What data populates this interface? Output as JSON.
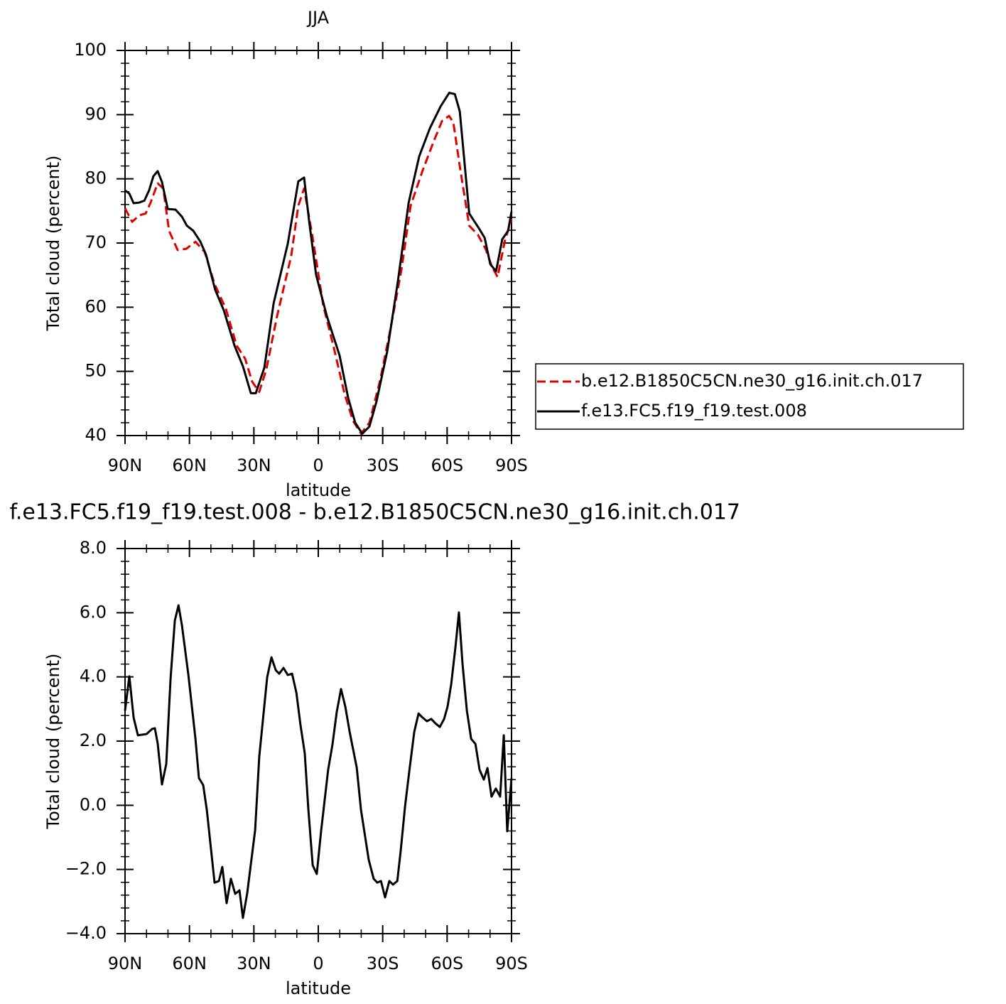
{
  "chart_data": [
    {
      "type": "line",
      "title": "JJA",
      "xlabel": "latitude",
      "ylabel": "Total cloud (percent)",
      "xlim": [
        90,
        -90
      ],
      "xticks": [
        {
          "value": 90,
          "label": "90N"
        },
        {
          "value": 60,
          "label": "60N"
        },
        {
          "value": 30,
          "label": "30N"
        },
        0,
        {
          "value": -30,
          "label": "30S"
        },
        {
          "value": -60,
          "label": "60S"
        },
        {
          "value": -90,
          "label": "90S"
        }
      ],
      "ylim": [
        40,
        100
      ],
      "yticks": [
        40,
        50,
        60,
        70,
        80,
        90,
        100
      ],
      "legend": "outside",
      "series": [
        {
          "name": "b.e12.B1850C5CN.ne30_g16.init.ch.017",
          "color": "#e00000",
          "dash": true,
          "x": [
            90,
            86.7,
            83.4,
            80.4,
            78.1,
            74.8,
            72.2,
            69.5,
            65.5,
            61.5,
            57.2,
            52.9,
            48.3,
            43,
            38,
            34.1,
            30.8,
            27.5,
            24.2,
            19.2,
            12.6,
            9.3,
            6.6,
            2.6,
            -2.3,
            -7.3,
            -12.3,
            -16.2,
            -19.9,
            -23.8,
            -28.8,
            -33.8,
            -38.7,
            -43,
            -48.6,
            -53.6,
            -57.6,
            -60.9,
            -62.9,
            -66.2,
            -70.3,
            -74.3,
            -77.9,
            -80.9,
            -83.5,
            -86.8,
            -90
          ],
          "values": [
            75.4,
            73.3,
            74.3,
            74.6,
            76.3,
            79.3,
            78.5,
            71.9,
            68.9,
            69.1,
            70.2,
            68.6,
            63.6,
            59.7,
            54.0,
            52.0,
            48.4,
            46.8,
            50.3,
            58.6,
            68.0,
            75.8,
            78.5,
            70.8,
            60.3,
            53.6,
            46.4,
            42.3,
            40.3,
            42.0,
            48.6,
            56.9,
            65.8,
            75.8,
            81.3,
            85.7,
            89.0,
            89.8,
            88.8,
            81.3,
            72.7,
            71.3,
            69.1,
            66.3,
            64.7,
            70.2,
            73.8
          ]
        },
        {
          "name": "f.e13.FC5.f19_f19.test.008",
          "color": "#000000",
          "dash": false,
          "x": [
            90,
            88,
            86,
            83.4,
            81,
            78.8,
            76.8,
            74.8,
            72.8,
            70.1,
            66.5,
            63.5,
            61.2,
            58.2,
            54.9,
            52.3,
            48,
            44,
            39,
            35.1,
            31.4,
            29.1,
            25.1,
            20.8,
            14.2,
            9.3,
            6.6,
            4.3,
            1,
            -4,
            -9.9,
            -13.9,
            -17.2,
            -20.5,
            -23.8,
            -27.1,
            -32.1,
            -37.1,
            -42.1,
            -47,
            -52,
            -57,
            -61,
            -63.6,
            -65.9,
            -70.3,
            -74.6,
            -77.5,
            -80.1,
            -82.8,
            -85.7,
            -88.4,
            -90
          ],
          "values": [
            78.2,
            77.7,
            76.2,
            76.3,
            76.6,
            78.2,
            80.4,
            81.2,
            79.5,
            75.3,
            75.2,
            74.1,
            72.7,
            71.9,
            70.2,
            68.2,
            62.7,
            59.5,
            54.0,
            50.8,
            46.6,
            46.6,
            50.6,
            60.6,
            69.9,
            79.6,
            80.2,
            73.5,
            65.0,
            58.6,
            52.5,
            45.9,
            42.0,
            40.3,
            41.4,
            45.3,
            53.1,
            64.1,
            76.3,
            83.5,
            87.9,
            91.3,
            93.4,
            93.2,
            90.5,
            74.6,
            72.4,
            70.8,
            66.7,
            65.6,
            70.6,
            71.9,
            74.9
          ]
        }
      ]
    },
    {
      "type": "line",
      "title": "f.e13.FC5.f19_f19.test.008 - b.e12.B1850C5CN.ne30_g16.init.ch.017",
      "xlabel": "latitude",
      "ylabel": "Total cloud (percent)",
      "xlim": [
        90,
        -90
      ],
      "xticks": [
        {
          "value": 90,
          "label": "90N"
        },
        {
          "value": 60,
          "label": "60N"
        },
        {
          "value": 30,
          "label": "30N"
        },
        0,
        {
          "value": -30,
          "label": "30S"
        },
        {
          "value": -60,
          "label": "60S"
        },
        {
          "value": -90,
          "label": "90S"
        }
      ],
      "ylim": [
        -4,
        8
      ],
      "yticks": [
        {
          "value": -4,
          "label": "−4.0"
        },
        {
          "value": -2,
          "label": "−2.0"
        },
        {
          "value": 0,
          "label": "0.0"
        },
        {
          "value": 2,
          "label": "2.0"
        },
        {
          "value": 4,
          "label": "4.0"
        },
        {
          "value": 6,
          "label": "6.0"
        },
        {
          "value": 8,
          "label": "8.0"
        }
      ],
      "series": [
        {
          "color": "#000000",
          "dash": false,
          "x": [
            90,
            88,
            86,
            84,
            80,
            77.4,
            76.1,
            74.8,
            72.8,
            70.8,
            68.8,
            66.8,
            65.1,
            63.5,
            60.5,
            57.2,
            55.6,
            53.6,
            51.9,
            48.3,
            46.3,
            44.7,
            42.7,
            40.7,
            38.7,
            36.7,
            35.1,
            33.1,
            29.4,
            27.5,
            23.8,
            21.8,
            19.8,
            18.2,
            16.2,
            14.2,
            12.2,
            10.2,
            8.3,
            6.3,
            4.6,
            2.6,
            0.7,
            -1.3,
            -4.6,
            -6.6,
            -8.6,
            -10.6,
            -12.6,
            -14.6,
            -17.9,
            -19.9,
            -23.5,
            -25.8,
            -27.5,
            -29.2,
            -31.1,
            -33.1,
            -34.8,
            -36.8,
            -38.4,
            -40.4,
            -42.4,
            -44.7,
            -46.7,
            -48.6,
            -50.6,
            -52.6,
            -54.6,
            -56.6,
            -58.6,
            -60.2,
            -61.9,
            -63.9,
            -65.5,
            -67.2,
            -69.2,
            -71.2,
            -73.2,
            -75.1,
            -77.1,
            -78.8,
            -80.7,
            -82.7,
            -84.7,
            -86.4,
            -88,
            -90
          ],
          "values": [
            2.95,
            4.02,
            2.73,
            2.18,
            2.22,
            2.38,
            2.4,
            1.93,
            0.65,
            1.29,
            3.95,
            5.76,
            6.23,
            5.61,
            4.06,
            2.07,
            0.85,
            0.63,
            -0.15,
            -2.41,
            -2.36,
            -1.92,
            -3.05,
            -2.29,
            -2.76,
            -2.65,
            -3.51,
            -2.74,
            -0.77,
            1.51,
            3.99,
            4.61,
            4.21,
            4.1,
            4.28,
            4.06,
            4.1,
            3.51,
            2.51,
            1.62,
            -0.15,
            -1.87,
            -2.14,
            -0.81,
            1.11,
            1.89,
            2.91,
            3.62,
            3.07,
            2.29,
            1.18,
            -0.15,
            -1.7,
            -2.29,
            -2.41,
            -2.36,
            -2.87,
            -2.36,
            -2.47,
            -2.36,
            -1.41,
            -0.04,
            1.07,
            2.29,
            2.86,
            2.73,
            2.62,
            2.69,
            2.55,
            2.44,
            2.69,
            3.07,
            3.77,
            4.94,
            6.01,
            4.39,
            2.95,
            2.07,
            1.91,
            1.11,
            0.8,
            1.16,
            0.27,
            0.52,
            0.27,
            2.18,
            -0.81,
            0.85
          ]
        }
      ]
    }
  ]
}
